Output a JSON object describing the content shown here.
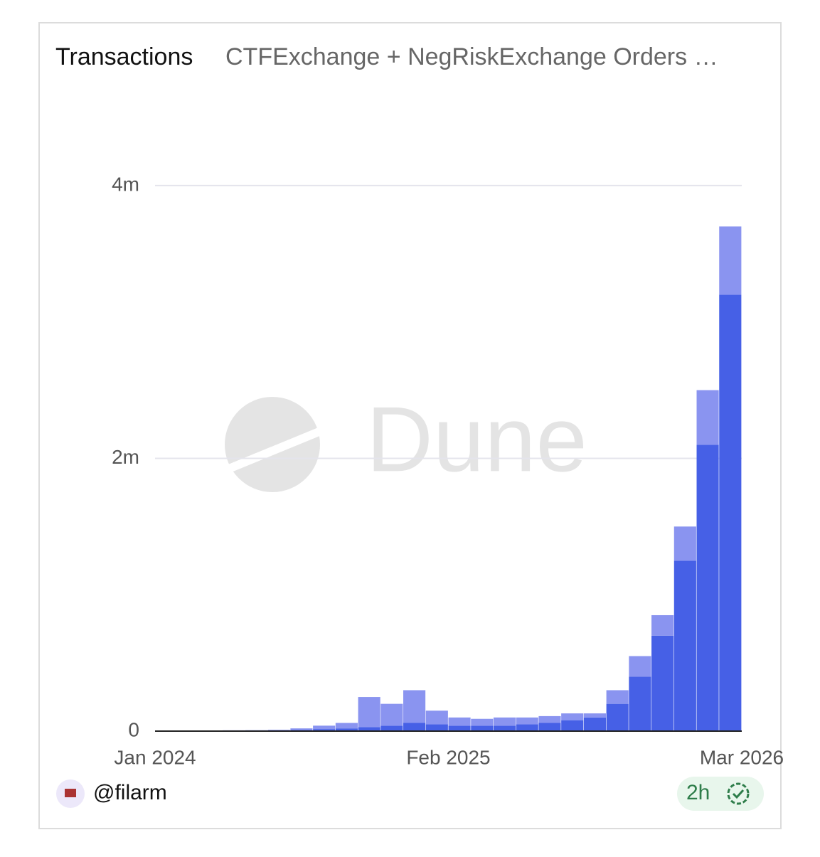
{
  "chart_data": {
    "type": "stacked-bar",
    "title": "Transactions",
    "subtitle": "CTFExchange + NegRiskExchange Orders …",
    "watermark": "Dune",
    "author": "@filarm",
    "freshness": "2h",
    "categories": [
      "Jan 2024",
      null,
      null,
      null,
      null,
      null,
      null,
      null,
      null,
      null,
      null,
      null,
      null,
      "Feb 2025",
      null,
      null,
      null,
      null,
      null,
      null,
      null,
      null,
      null,
      null,
      null,
      null,
      "Mar 2026"
    ],
    "series": [
      {
        "color": "#4660e6",
        "values": [
          3000,
          3000,
          3000,
          3000,
          4000,
          5000,
          8000,
          15000,
          20000,
          30000,
          40000,
          60000,
          50000,
          40000,
          40000,
          40000,
          50000,
          60000,
          80000,
          100000,
          200000,
          400000,
          700000,
          1250000,
          2100000,
          3200000,
          null
        ]
      },
      {
        "color": "#8a94f0",
        "values": [
          2000,
          2000,
          2000,
          3000,
          3000,
          5000,
          12000,
          25000,
          40000,
          220000,
          160000,
          240000,
          100000,
          60000,
          50000,
          60000,
          50000,
          50000,
          50000,
          30000,
          100000,
          150000,
          150000,
          250000,
          400000,
          500000,
          null
        ]
      }
    ],
    "ylim": [
      0,
      4500000
    ],
    "yticks": [
      {
        "value": 0,
        "label": "0"
      },
      {
        "value": 2000000,
        "label": "2m"
      },
      {
        "value": 4000000,
        "label": "4m"
      }
    ],
    "grid": true
  }
}
